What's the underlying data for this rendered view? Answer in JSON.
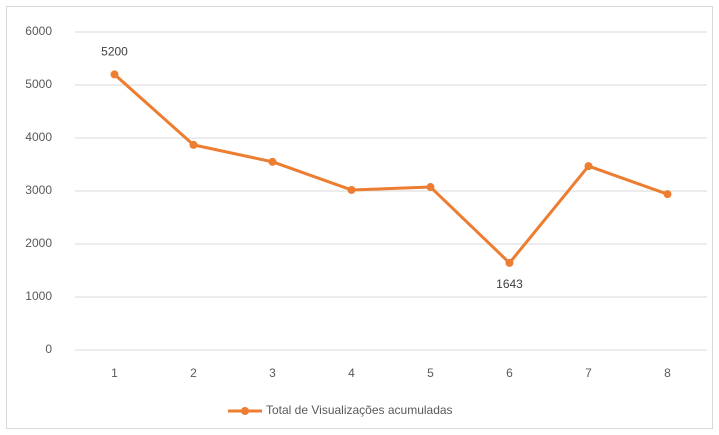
{
  "chart_data": {
    "type": "line",
    "categories": [
      "1",
      "2",
      "3",
      "4",
      "5",
      "6",
      "7",
      "8"
    ],
    "series": [
      {
        "name": "Total de Visualizações acumuladas",
        "color": "#ed7d31",
        "values": [
          5200,
          3870,
          3550,
          3020,
          3075,
          1643,
          3470,
          2940
        ]
      }
    ],
    "labeled_points": [
      0,
      5
    ],
    "ylim": [
      0,
      6000
    ],
    "yticks": [
      0,
      1000,
      2000,
      3000,
      4000,
      5000,
      6000
    ],
    "grid": true,
    "legend": "bottom"
  }
}
